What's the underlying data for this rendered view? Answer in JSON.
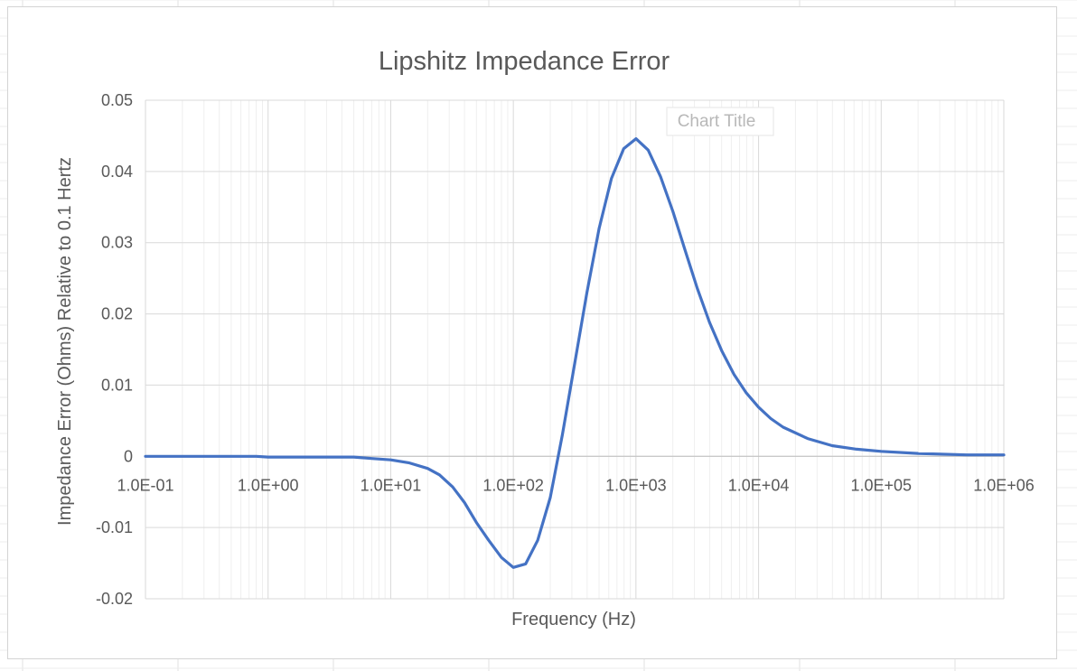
{
  "chart_data": {
    "type": "line",
    "title": "Lipshitz Impedance Error",
    "xlabel": "Frequency (Hz)",
    "ylabel": "Impedance Error (Ohms) Relative to 0.1 Hertz",
    "x_scale": "log",
    "xlim": [
      0.1,
      1000000
    ],
    "ylim": [
      -0.02,
      0.05
    ],
    "y_ticks": [
      "-0.02",
      "-0.01",
      "0",
      "0.01",
      "0.02",
      "0.03",
      "0.04",
      "0.05"
    ],
    "x_ticks": [
      "1.0E-01",
      "1.0E+00",
      "1.0E+01",
      "1.0E+02",
      "1.0E+03",
      "1.0E+04",
      "1.0E+05",
      "1.0E+06"
    ],
    "grid": true,
    "legend": "none",
    "overlay_label": "Chart Title",
    "series": [
      {
        "color": "#4472c4",
        "points": [
          [
            0.1,
            0
          ],
          [
            0.2,
            0
          ],
          [
            0.5,
            0
          ],
          [
            0.8,
            0
          ],
          [
            1.0,
            -0.0001
          ],
          [
            2.0,
            -0.0001
          ],
          [
            5.0,
            -0.0001
          ],
          [
            7.0,
            -0.0003
          ],
          [
            10,
            -0.0005
          ],
          [
            14,
            -0.0009
          ],
          [
            20,
            -0.0017
          ],
          [
            25,
            -0.0026
          ],
          [
            32,
            -0.0043
          ],
          [
            40,
            -0.0065
          ],
          [
            50,
            -0.0093
          ],
          [
            63,
            -0.0118
          ],
          [
            80,
            -0.0142
          ],
          [
            100,
            -0.0156
          ],
          [
            126,
            -0.0151
          ],
          [
            158,
            -0.0118
          ],
          [
            200,
            -0.0058
          ],
          [
            251,
            0.003
          ],
          [
            316,
            0.013
          ],
          [
            398,
            0.023
          ],
          [
            501,
            0.032
          ],
          [
            631,
            0.039
          ],
          [
            794,
            0.0432
          ],
          [
            1000,
            0.0446
          ],
          [
            1259,
            0.043
          ],
          [
            1585,
            0.0393
          ],
          [
            2000,
            0.0344
          ],
          [
            2512,
            0.029
          ],
          [
            3162,
            0.0236
          ],
          [
            3981,
            0.0188
          ],
          [
            5012,
            0.0148
          ],
          [
            6310,
            0.0115
          ],
          [
            7943,
            0.0089
          ],
          [
            10000,
            0.0069
          ],
          [
            12589,
            0.0053
          ],
          [
            15849,
            0.0041
          ],
          [
            25119,
            0.0025
          ],
          [
            39811,
            0.0015
          ],
          [
            63096,
            0.001
          ],
          [
            100000,
            0.0007
          ],
          [
            200000,
            0.0004
          ],
          [
            500000,
            0.0002
          ],
          [
            1000000,
            0.0002
          ]
        ]
      }
    ]
  }
}
